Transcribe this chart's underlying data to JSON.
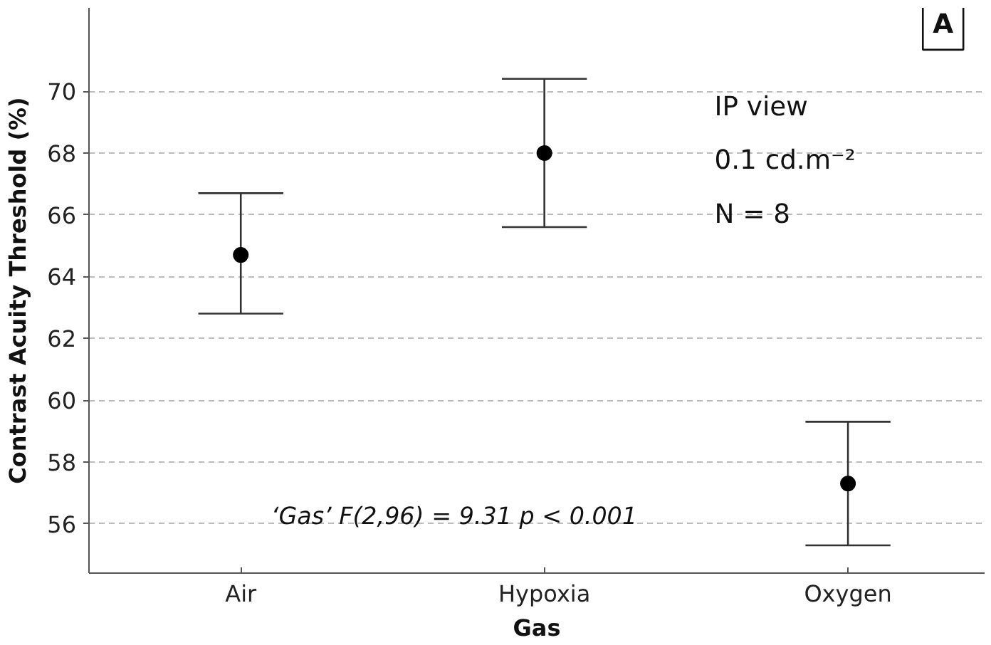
{
  "chart_data": {
    "type": "scatter",
    "xlabel": "Gas",
    "ylabel": "Contrast Acuity Threshold (%)",
    "categories": [
      "Air",
      "Hypoxia",
      "Oxygen"
    ],
    "values": [
      64.7,
      68.0,
      57.3
    ],
    "errors": [
      [
        62.8,
        66.7
      ],
      [
        65.6,
        70.4
      ],
      [
        55.3,
        59.3
      ]
    ],
    "color": "#000000",
    "marker": "circle",
    "ylim": [
      54.4,
      72.7
    ],
    "yticks": [
      56,
      58,
      60,
      62,
      64,
      66,
      68,
      70
    ],
    "grid": "y",
    "annotations": [
      "A",
      "IP view",
      "0.1 cd.m⁻²",
      "N = 8",
      "‘Gas’  F(2,96) = 9.31  p < 0.001"
    ]
  }
}
